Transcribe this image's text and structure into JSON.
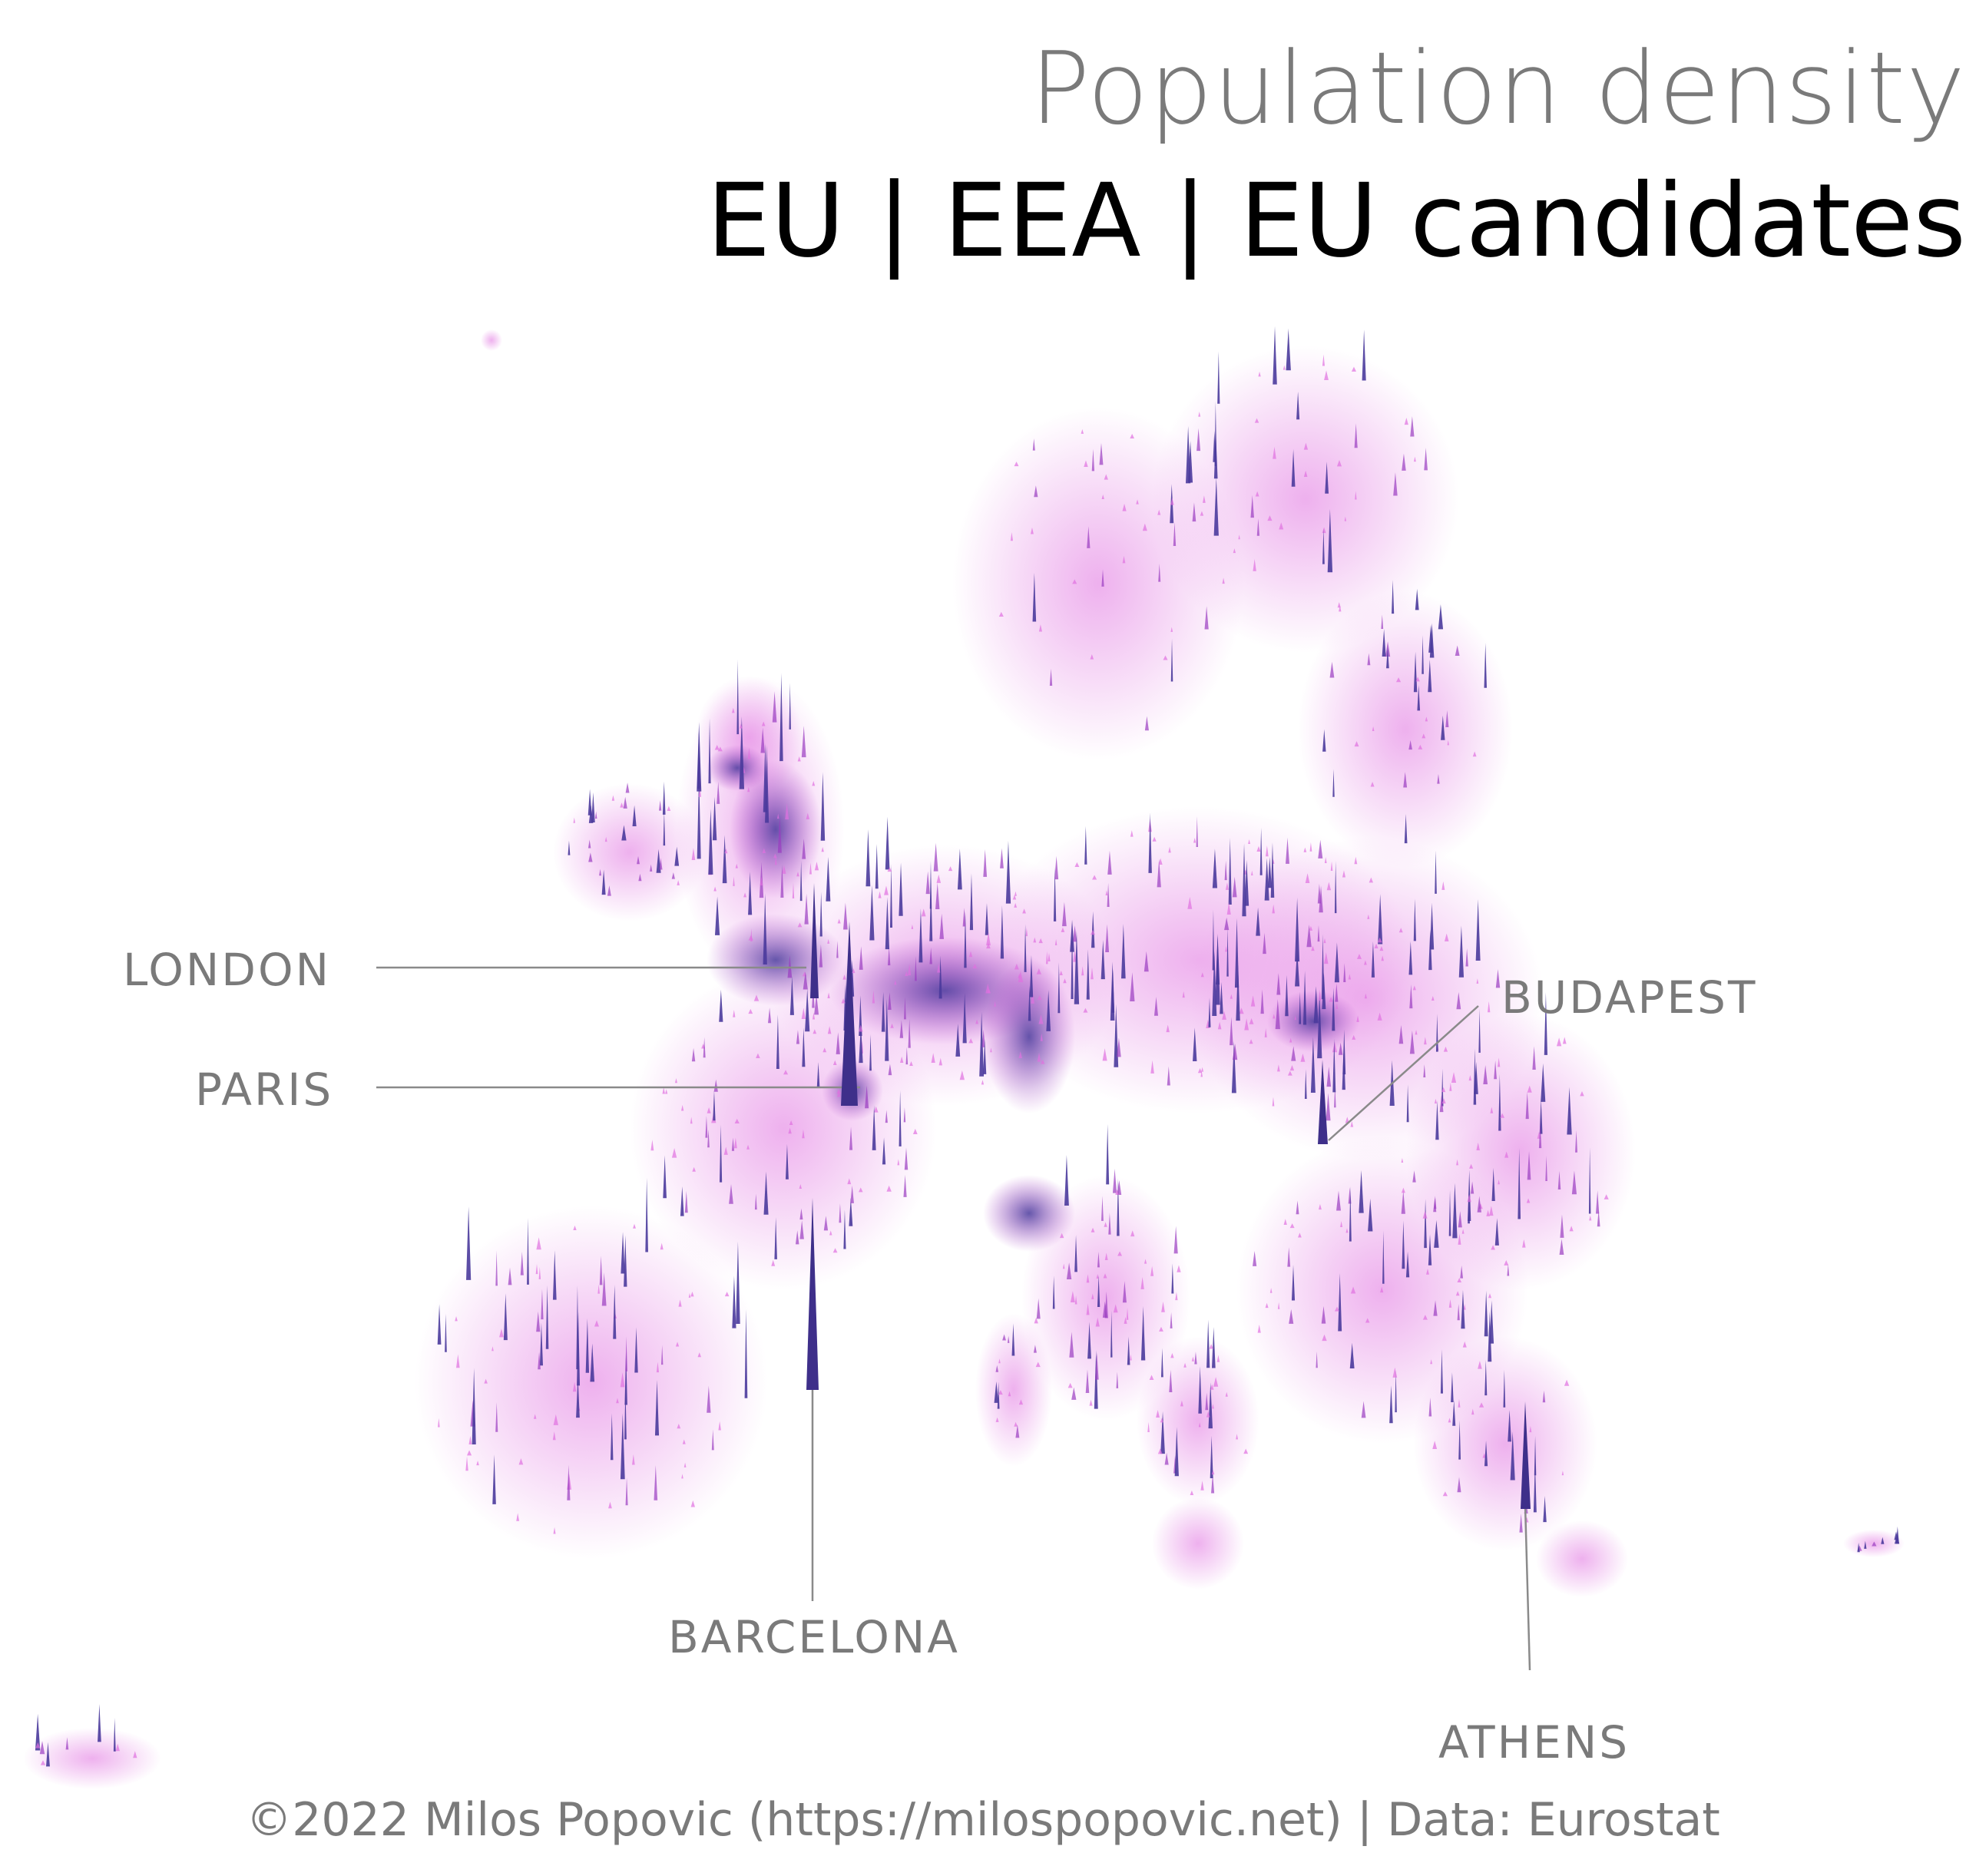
{
  "title": "Population density",
  "subtitle": "EU | EEA | EU candidates",
  "credit": "©2022 Milos Popovic (https://milospopovic.net) | Data: Eurostat",
  "colors": {
    "background": "#ffffff",
    "low_density": "#e070e0",
    "mid_density": "#b040c8",
    "high_density": "#4a3a9c",
    "label_text": "#7a7a7a",
    "leader_line": "#8a8a8a"
  },
  "cities": [
    {
      "id": "london",
      "label": "LONDON"
    },
    {
      "id": "paris",
      "label": "PARIS"
    },
    {
      "id": "budapest",
      "label": "BUDAPEST"
    },
    {
      "id": "barcelona",
      "label": "BARCELONA"
    },
    {
      "id": "athens",
      "label": "ATHENS"
    }
  ]
}
